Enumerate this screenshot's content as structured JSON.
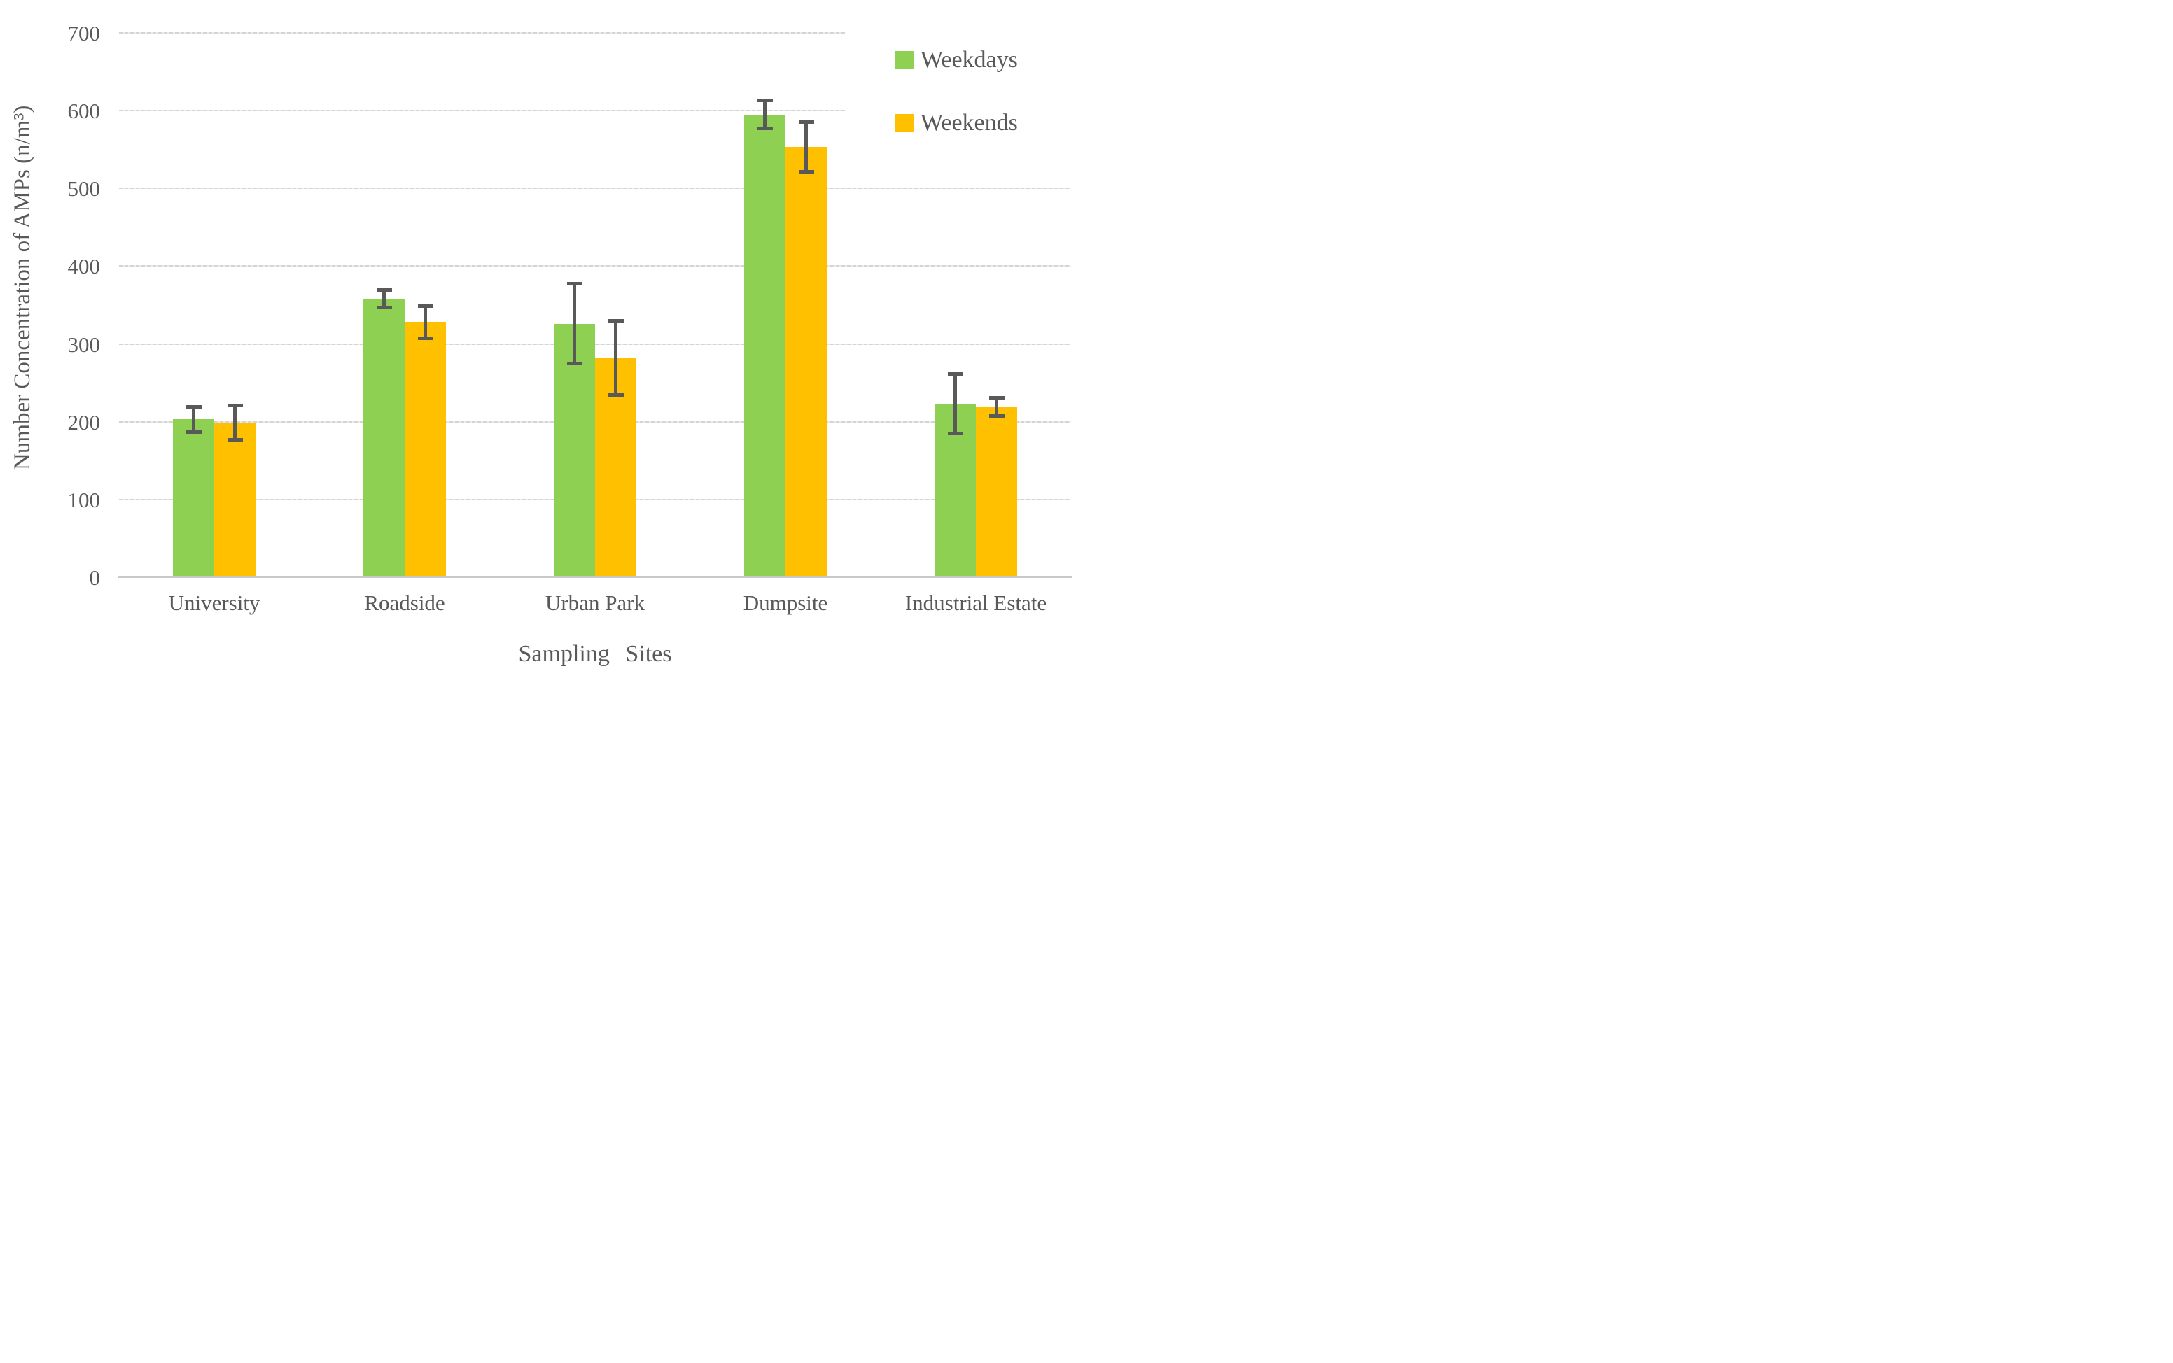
{
  "chart_data": {
    "type": "bar",
    "title": "",
    "xlabel": "Sampling Sites",
    "ylabel": "Number Concentration of AMPs (n/m³)",
    "categories": [
      "University",
      "Roadside",
      "Urban Park",
      "Dumpsite",
      "Industrial Estate"
    ],
    "series": [
      {
        "name": "Weekdays",
        "color": "#8ED152",
        "values": [
          203,
          358,
          326,
          595,
          223
        ],
        "error_bars": [
          16,
          11,
          51,
          18,
          38
        ]
      },
      {
        "name": "Weekends",
        "color": "#FFC000",
        "values": [
          199,
          328,
          282,
          553,
          219
        ],
        "error_bars": [
          22,
          21,
          48,
          32,
          12
        ]
      }
    ],
    "ylim": [
      0,
      700
    ],
    "yticks": [
      0,
      100,
      200,
      300,
      400,
      500,
      600,
      700
    ],
    "grid": true,
    "legend_position": "top-right",
    "colors": {
      "text": "#595959",
      "error_bar": "#595959",
      "gridline": "#D9D9D9",
      "axis_line": "#C9C9C9"
    }
  }
}
